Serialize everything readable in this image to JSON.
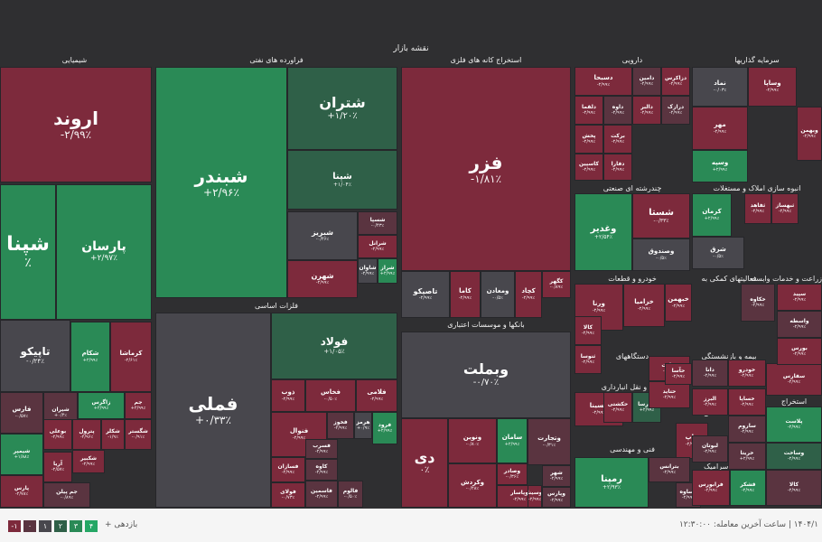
{
  "map_title": "نقشه بازار",
  "colors": {
    "red3": "#9c2a3e",
    "red2": "#7d2a3c",
    "red1": "#5a3440",
    "neutral": "#48474d",
    "green1": "#2f6048",
    "green2": "#2a8a56",
    "green3": "#25a765"
  },
  "sections": [
    {
      "label": "شیمیایی"
    },
    {
      "label": "فراورده های نفتی"
    },
    {
      "label": "استخراج کانه های فلزی"
    },
    {
      "label": "دارویی"
    },
    {
      "label": "سرمایه گذاریها"
    },
    {
      "label": "فلزات اساسی"
    },
    {
      "label": "بانکها و موسسات اعتباری"
    },
    {
      "label": "چندرشته ای صنعتی"
    },
    {
      "label": "انبوه سازی املاک و مستغلات"
    },
    {
      "label": "خودرو و قطعات"
    },
    {
      "label": "فعالیتهای کمکی به"
    },
    {
      "label": "زراعت و خدمات وابسته"
    },
    {
      "label": "دستگاههای"
    },
    {
      "label": "بیمه و بازنشستگی"
    },
    {
      "label": "قند و شکر"
    },
    {
      "label": "حمل و نقل انبارداری"
    },
    {
      "label": "محصولات کاغذی"
    },
    {
      "label": "لاستیک و"
    },
    {
      "label": "استخراج"
    },
    {
      "label": "فنی و مهندسی"
    },
    {
      "label": "کاشی و سرامیک"
    },
    {
      "label": "عرضه"
    }
  ],
  "tiles": [
    {
      "name": "اروند",
      "pct": "-۲/۹۹٪"
    },
    {
      "name": "شپنا",
      "pct": "٪"
    },
    {
      "name": "پارسان",
      "pct": "+۲/۹۷٪"
    },
    {
      "name": "تاپیکو",
      "pct": "-۰/۲۴٪"
    },
    {
      "name": "شکام",
      "pct": "+۲/۹۹٪"
    },
    {
      "name": "کرماشا",
      "pct": "-۲/۶۱٪"
    },
    {
      "name": "فارس",
      "pct": "-۰/۵۷٪"
    },
    {
      "name": "شیران",
      "pct": "+۰/۴٪"
    },
    {
      "name": "زاگرس",
      "pct": "+۲/۹۹٪"
    },
    {
      "name": "جم",
      "pct": "+۲/۹۹٪"
    },
    {
      "name": "بوعلی",
      "pct": "-۲/۹۹٪"
    },
    {
      "name": "پترول",
      "pct": "-۲/۹۶٪"
    },
    {
      "name": "شکلر",
      "pct": "-۱/۹٪"
    },
    {
      "name": "شگستر",
      "pct": "-۰/۹۱٪"
    },
    {
      "name": "شیمپر",
      "pct": "+۱/۸۸٪"
    },
    {
      "name": "شکبیر",
      "pct": "-۲/۹۹٪"
    },
    {
      "name": "آریا",
      "pct": "-۲/۵۷٪"
    },
    {
      "name": "پارس",
      "pct": "-۲/۷۸٪"
    },
    {
      "name": "جم پیلن",
      "pct": "-۰/۸۹٪"
    },
    {
      "name": "شبندر",
      "pct": "+۲/۹۶٪"
    },
    {
      "name": "شتران",
      "pct": "+۱/۲۰٪"
    },
    {
      "name": "شپنا",
      "pct": "+۱/۰۴٪"
    },
    {
      "name": "شبریز",
      "pct": "-۰/۴۶٪"
    },
    {
      "name": "شسپا",
      "pct": "-۰/۴۳٪"
    },
    {
      "name": "شرانل",
      "pct": "-۲/۹۹٪"
    },
    {
      "name": "شاوان",
      "pct": "-۲/۹۹٪"
    },
    {
      "name": "شهرن",
      "pct": "-۲/۹۹٪"
    },
    {
      "name": "شراز",
      "pct": "+۲/۹۹٪"
    },
    {
      "name": "فزر",
      "pct": "-۱/۸۱٪"
    },
    {
      "name": "تاصیکو",
      "pct": "-۲/۹۹٪"
    },
    {
      "name": "کاما",
      "pct": "-۲/۹۹٪"
    },
    {
      "name": "ومعادن",
      "pct": "-۰/۵٪"
    },
    {
      "name": "کچاد",
      "pct": "-۲/۹۹٪"
    },
    {
      "name": "کگهر",
      "pct": "-۰/۸۹٪"
    },
    {
      "name": "فملی",
      "pct": "+۰/۳۳٪"
    },
    {
      "name": "فولاد",
      "pct": "+۱/۰۵٪"
    },
    {
      "name": "ذوب",
      "pct": "-۲/۹۹٪"
    },
    {
      "name": "فخاس",
      "pct": "-۰/۵۰٪"
    },
    {
      "name": "فخوز",
      "pct": "-۲/۹۹٪"
    },
    {
      "name": "فلامی",
      "pct": "-۲/۹۹٪"
    },
    {
      "name": "هرمز",
      "pct": "+۰/۹٪"
    },
    {
      "name": "فرود",
      "pct": "+۲/۹۹٪"
    },
    {
      "name": "فنوال",
      "pct": "-۲/۹۹٪"
    },
    {
      "name": "فسرب",
      "pct": "-۲/۹۹٪"
    },
    {
      "name": "کاوه",
      "pct": "-۲/۹۹٪"
    },
    {
      "name": "فسازان",
      "pct": "-۲/۹۹٪"
    },
    {
      "name": "فاسمین",
      "pct": "-۲/۹۹٪"
    },
    {
      "name": "فولای",
      "pct": "-۰/۷۳٪"
    },
    {
      "name": "فالوم",
      "pct": "-۰/۵۰٪"
    },
    {
      "name": "وبملت",
      "pct": "-۰/۷۰٪"
    },
    {
      "name": "دی",
      "pct": "۰٪"
    },
    {
      "name": "ونوین",
      "pct": "-۰/۸۰٪"
    },
    {
      "name": "سامان",
      "pct": "+۲/۹۹٪"
    },
    {
      "name": "وتجارت",
      "pct": "-۰/۳۱٪"
    },
    {
      "name": "وکردش",
      "pct": "-۰/۴۸٪"
    },
    {
      "name": "وصادر",
      "pct": "-۰/۳۶٪"
    },
    {
      "name": "وپاسار",
      "pct": "-۲/۹۹٪"
    },
    {
      "name": "شهر",
      "pct": "-۲/۹۹٪"
    },
    {
      "name": "وسینا",
      "pct": "-۲/۹۹٪"
    },
    {
      "name": "وپارس",
      "pct": "-۲/۹۹٪"
    },
    {
      "name": "دسبحا",
      "pct": "-۲/۹۹٪"
    },
    {
      "name": "دامین",
      "pct": "-۲/۹۹٪"
    },
    {
      "name": "دزاکرس",
      "pct": "-۲/۹۹٪"
    },
    {
      "name": "دالبر",
      "pct": "-۲/۹۹٪"
    },
    {
      "name": "درازک",
      "pct": "-۲/۹۹٪"
    },
    {
      "name": "دلقما",
      "pct": "-۲/۹۹٪"
    },
    {
      "name": "داوه",
      "pct": "-۲/۹۹٪"
    },
    {
      "name": "پخش",
      "pct": "-۲/۹۹٪"
    },
    {
      "name": "برکت",
      "pct": "-۲/۹۹٪"
    },
    {
      "name": "دفارا",
      "pct": "-۲/۹۹٪"
    },
    {
      "name": "کاسپین",
      "pct": "-۲/۹۹٪"
    },
    {
      "name": "نماد",
      "pct": "-۰/۰۳٪"
    },
    {
      "name": "وساپا",
      "pct": "-۲/۹۹٪"
    },
    {
      "name": "وبهمن",
      "pct": "-۲/۹۹٪"
    },
    {
      "name": "مهر",
      "pct": "-۲/۹۹٪"
    },
    {
      "name": "وسپه",
      "pct": "+۲/۹۹٪"
    },
    {
      "name": "وغدیر",
      "pct": "+۲/۵۴٪"
    },
    {
      "name": "شستا",
      "pct": "-۰/۳۳٪"
    },
    {
      "name": "وصندوق",
      "pct": "-۰/۵٪"
    },
    {
      "name": "کرمان",
      "pct": "+۲/۹۹٪"
    },
    {
      "name": "شرق",
      "pct": "-۰/۵٪"
    },
    {
      "name": "ثفاهد",
      "pct": "-۲/۹۹٪"
    },
    {
      "name": "ثبهساز",
      "pct": "-۲/۹۹٪"
    },
    {
      "name": "ورنا",
      "pct": "-۲/۹۹٪"
    },
    {
      "name": "خزامیا",
      "pct": "-۲/۹۹٪"
    },
    {
      "name": "خبهمن",
      "pct": "-۲/۹۹٪"
    },
    {
      "name": "خکاوه",
      "pct": "-۲/۹۹٪"
    },
    {
      "name": "سپید",
      "pct": "-۲/۹۹٪"
    },
    {
      "name": "کالا",
      "pct": "-۲/۹۹٪"
    },
    {
      "name": "ثنوسا",
      "pct": "-۲/۹۹٪"
    },
    {
      "name": "حسینا",
      "pct": "-۲/۹۹٪"
    },
    {
      "name": "حکشتی",
      "pct": "-۲/۹۹٪"
    },
    {
      "name": "وپارسا",
      "pct": "+۲/۹۹٪"
    },
    {
      "name": "چاپ",
      "pct": "-۲/۹۹٪"
    },
    {
      "name": "رمپنا",
      "pct": "+۲/۹۳٪"
    },
    {
      "name": "بترانس",
      "pct": "-۲/۹۹٪"
    },
    {
      "name": "کساوه",
      "pct": "-۲/۹۹٪"
    },
    {
      "name": "لبوتان",
      "pct": "-۲/۹۹٪"
    },
    {
      "name": "قثابت",
      "pct": "-۲/۹۹٪"
    },
    {
      "name": "حتاید",
      "pct": "-۲/۹۹٪"
    },
    {
      "name": "حآسا",
      "pct": "-۲/۹۹٪"
    },
    {
      "name": "دانا",
      "pct": "-۲/۹۹٪"
    },
    {
      "name": "البرز",
      "pct": "-۲/۹۹٪"
    },
    {
      "name": "خودرو",
      "pct": "-۲/۹۹٪"
    },
    {
      "name": "خساپا",
      "pct": "-۲/۹۹٪"
    },
    {
      "name": "سفارس",
      "pct": "-۲/۹۹٪"
    },
    {
      "name": "ساروم",
      "pct": "-۲/۹۹٪"
    },
    {
      "name": "پلاست",
      "pct": "-۲/۹۹٪"
    },
    {
      "name": "خریتا",
      "pct": "+۲/۹۹٪"
    },
    {
      "name": "کالا",
      "pct": "-۲/۹۹٪"
    },
    {
      "name": "واسطه",
      "pct": "-۲/۹۹٪"
    },
    {
      "name": "بورس",
      "pct": "-۲/۹۹٪"
    },
    {
      "name": "فرابورس",
      "pct": "-۲/۹۹٪"
    },
    {
      "name": "قشکر",
      "pct": "-۲/۹۹٪"
    },
    {
      "name": "وساخت",
      "pct": "-۲/۹۹٪"
    },
    {
      "name": "سیمان",
      "pct": "+۲/۹۹٪"
    },
    {
      "name": "ساوه",
      "pct": "-۲/۹۹٪"
    }
  ],
  "footer": {
    "legend_label": "بازدهی +",
    "legend_values": [
      "۴",
      "۳",
      "۲",
      "۱",
      "۰",
      "-۱"
    ],
    "timestamp": "۱۴۰۴/۱ | ساعت آخرین معامله: ۱۲:۳۰:۰۰"
  }
}
